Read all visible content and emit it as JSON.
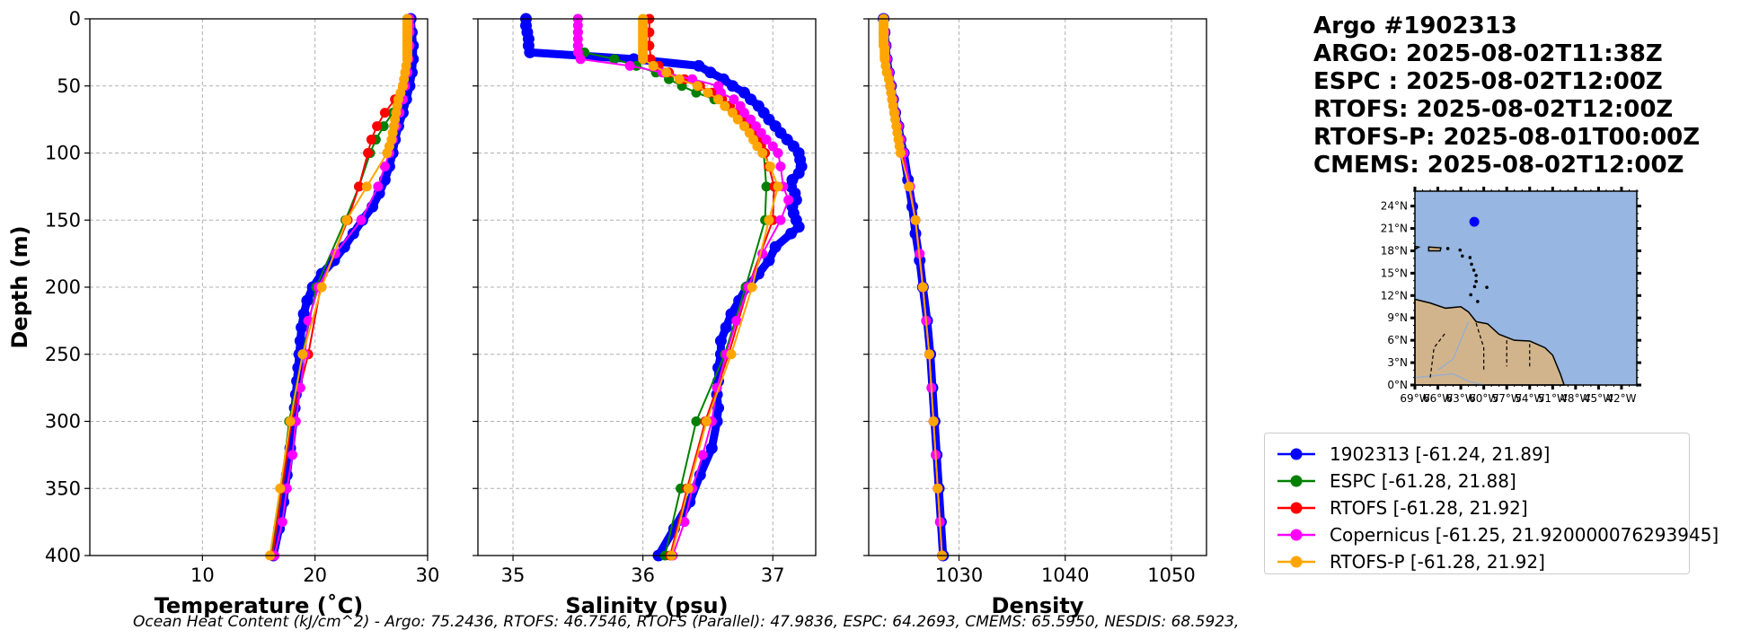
{
  "info": {
    "title": "Argo #1902313",
    "lines": [
      "ARGO: 2025-08-02T11:38Z",
      "ESPC : 2025-08-02T12:00Z",
      "RTOFS: 2025-08-02T12:00Z",
      "RTOFS-P: 2025-08-01T00:00Z",
      "CMEMS: 2025-08-02T12:00Z"
    ]
  },
  "caption": "Ocean Heat Content (kJ/cm^2) - Argo: 75.2436,  RTOFS: 46.7546,  RTOFS (Parallel): 47.9836,  ESPC: 64.2693,  CMEMS: 65.5950,  NESDIS: 68.5923,",
  "colors": {
    "argo": "#0000ff",
    "espc": "#008000",
    "rtofs": "#ff0000",
    "copernicus": "#ff00ff",
    "rtofsp": "#ffa500",
    "ocean": "#97b6e1",
    "land": "#d2b48c",
    "grid": "#b0b0b0"
  },
  "legend": [
    {
      "label": "1902313 [-61.24, 21.89]",
      "color": "#0000ff"
    },
    {
      "label": "ESPC [-61.28, 21.88]",
      "color": "#008000"
    },
    {
      "label": "RTOFS [-61.28, 21.92]",
      "color": "#ff0000"
    },
    {
      "label": "Copernicus [-61.25, 21.920000076293945]",
      "color": "#ff00ff"
    },
    {
      "label": "RTOFS-P [-61.28, 21.92]",
      "color": "#ffa500"
    }
  ],
  "map": {
    "lat_labels": [
      "24°N",
      "21°N",
      "18°N",
      "15°N",
      "12°N",
      "9°N",
      "6°N",
      "3°N",
      "0°N"
    ],
    "lon_labels": [
      "69°W",
      "66°W",
      "63°W",
      "60°W",
      "57°W",
      "54°W",
      "51°W",
      "48°W",
      "45°W",
      "42°W"
    ],
    "float_position": {
      "lon": -61.24,
      "lat": 21.89
    }
  },
  "chart_data": [
    {
      "type": "line",
      "xlabel": "Temperature (˚C)",
      "ylabel": "Depth (m)",
      "xlim": [
        0,
        30
      ],
      "ylim": [
        400,
        0
      ],
      "xticks": [
        10,
        20,
        30
      ],
      "yticks": [
        0,
        50,
        100,
        150,
        200,
        250,
        300,
        350,
        400
      ],
      "grid": true,
      "series": [
        {
          "name": "1902313",
          "depth": [
            0,
            10,
            20,
            30,
            40,
            50,
            60,
            70,
            80,
            90,
            100,
            110,
            120,
            130,
            140,
            150,
            160,
            170,
            180,
            190,
            200,
            210,
            220,
            230,
            240,
            250,
            260,
            270,
            280,
            290,
            300,
            320,
            340,
            360,
            380,
            400
          ],
          "values": [
            28.5,
            28.6,
            28.7,
            28.7,
            28.6,
            28.4,
            28.1,
            27.8,
            27.4,
            27.1,
            26.9,
            26.6,
            26.2,
            25.7,
            25.1,
            24.2,
            23.4,
            22.6,
            21.7,
            20.6,
            19.8,
            19.3,
            19.0,
            18.8,
            18.7,
            18.6,
            18.5,
            18.4,
            18.3,
            18.2,
            18.1,
            17.8,
            17.5,
            17.2,
            16.8,
            16.3
          ]
        },
        {
          "name": "ESPC",
          "depth": [
            0,
            10,
            20,
            30,
            40,
            50,
            60,
            70,
            80,
            90,
            100,
            125,
            150,
            200,
            250,
            300,
            350,
            400
          ],
          "values": [
            28.2,
            28.2,
            28.2,
            28.2,
            28.1,
            27.9,
            27.5,
            26.9,
            26.1,
            25.4,
            24.9,
            23.9,
            22.7,
            20.1,
            18.9,
            17.7,
            17.0,
            16.1
          ]
        },
        {
          "name": "RTOFS",
          "depth": [
            0,
            10,
            20,
            30,
            40,
            50,
            60,
            70,
            80,
            90,
            100,
            125,
            150,
            200,
            250,
            300,
            350,
            400
          ],
          "values": [
            28.3,
            28.3,
            28.3,
            28.3,
            28.2,
            27.8,
            27.1,
            26.2,
            25.5,
            25.0,
            24.7,
            23.9,
            22.9,
            20.5,
            19.4,
            17.9,
            17.1,
            16.2
          ]
        },
        {
          "name": "Copernicus",
          "depth": [
            0,
            5,
            10,
            20,
            30,
            40,
            50,
            60,
            70,
            80,
            90,
            100,
            110,
            125,
            150,
            175,
            200,
            225,
            250,
            275,
            300,
            325,
            350,
            375,
            400
          ],
          "values": [
            28.4,
            28.4,
            28.4,
            28.4,
            28.3,
            28.2,
            28.0,
            27.8,
            27.5,
            27.2,
            26.9,
            26.6,
            26.2,
            25.6,
            24.1,
            21.8,
            20.3,
            19.4,
            19.1,
            18.7,
            18.3,
            18.0,
            17.5,
            17.1,
            16.4
          ]
        },
        {
          "name": "RTOFS-P",
          "depth": [
            0,
            2,
            4,
            6,
            8,
            10,
            12,
            14,
            16,
            18,
            20,
            22,
            24,
            26,
            28,
            30,
            35,
            40,
            45,
            50,
            55,
            60,
            65,
            70,
            75,
            80,
            85,
            90,
            95,
            100,
            125,
            150,
            200,
            250,
            300,
            350,
            400
          ],
          "values": [
            28.2,
            28.2,
            28.2,
            28.2,
            28.2,
            28.2,
            28.2,
            28.2,
            28.2,
            28.2,
            28.2,
            28.2,
            28.2,
            28.2,
            28.2,
            28.2,
            28.1,
            28.0,
            27.9,
            27.8,
            27.6,
            27.4,
            27.3,
            27.2,
            27.1,
            27.0,
            26.9,
            26.8,
            26.6,
            26.4,
            24.6,
            22.8,
            20.6,
            18.9,
            17.8,
            16.9,
            16.0
          ]
        }
      ]
    },
    {
      "type": "line",
      "xlabel": "Salinity (psu)",
      "xlim": [
        34.73,
        37.33
      ],
      "ylim": [
        400,
        0
      ],
      "xticks": [
        35,
        36,
        37
      ],
      "yticks": [
        0,
        50,
        100,
        150,
        200,
        250,
        300,
        350,
        400
      ],
      "grid": true,
      "series": [
        {
          "name": "1902313",
          "depth": [
            0,
            5,
            10,
            15,
            20,
            25,
            30,
            35,
            40,
            45,
            50,
            55,
            60,
            65,
            70,
            75,
            80,
            85,
            90,
            95,
            100,
            105,
            110,
            115,
            120,
            125,
            130,
            135,
            140,
            145,
            150,
            155,
            160,
            170,
            180,
            190,
            200,
            210,
            220,
            230,
            240,
            250,
            260,
            270,
            280,
            290,
            300,
            320,
            340,
            360,
            380,
            400
          ],
          "values": [
            35.1,
            35.1,
            35.11,
            35.12,
            35.12,
            35.13,
            35.93,
            36.43,
            36.52,
            36.62,
            36.69,
            36.78,
            36.83,
            36.89,
            36.93,
            36.97,
            37.02,
            37.06,
            37.11,
            37.16,
            37.2,
            37.21,
            37.22,
            37.2,
            37.15,
            37.14,
            37.17,
            37.18,
            37.15,
            37.16,
            37.18,
            37.2,
            37.14,
            37.02,
            36.97,
            36.89,
            36.8,
            36.74,
            36.68,
            36.64,
            36.6,
            36.6,
            36.58,
            36.58,
            36.57,
            36.58,
            36.57,
            36.53,
            36.44,
            36.36,
            36.24,
            36.12
          ]
        },
        {
          "name": "ESPC",
          "depth": [
            0,
            10,
            20,
            25,
            30,
            35,
            40,
            45,
            50,
            55,
            60,
            65,
            70,
            75,
            80,
            90,
            100,
            125,
            150,
            200,
            250,
            300,
            350,
            400
          ],
          "values": [
            35.5,
            35.5,
            35.5,
            35.55,
            35.78,
            35.95,
            36.1,
            36.2,
            36.3,
            36.41,
            36.55,
            36.66,
            36.74,
            36.81,
            36.85,
            36.91,
            36.93,
            36.95,
            36.94,
            36.79,
            36.63,
            36.41,
            36.29,
            36.17
          ]
        },
        {
          "name": "RTOFS",
          "depth": [
            0,
            10,
            20,
            30,
            35,
            40,
            45,
            50,
            55,
            60,
            65,
            70,
            75,
            80,
            85,
            90,
            95,
            100,
            110,
            125,
            150,
            200,
            250,
            300,
            350,
            400
          ],
          "values": [
            36.05,
            36.05,
            36.05,
            36.06,
            36.12,
            36.2,
            36.32,
            36.44,
            36.53,
            36.61,
            36.67,
            36.72,
            36.77,
            36.81,
            36.85,
            36.88,
            36.91,
            36.94,
            36.97,
            37.01,
            37.0,
            36.81,
            36.66,
            36.48,
            36.34,
            36.21
          ]
        },
        {
          "name": "Copernicus",
          "depth": [
            0,
            5,
            10,
            15,
            20,
            25,
            30,
            35,
            40,
            45,
            50,
            55,
            60,
            65,
            70,
            75,
            80,
            85,
            90,
            95,
            100,
            110,
            125,
            135,
            150,
            175,
            200,
            225,
            250,
            275,
            300,
            325,
            350,
            375,
            400
          ],
          "values": [
            35.5,
            35.5,
            35.5,
            35.5,
            35.5,
            35.5,
            35.52,
            35.9,
            36.15,
            36.38,
            36.58,
            36.6,
            36.7,
            36.75,
            36.78,
            36.83,
            36.87,
            36.91,
            36.95,
            37.0,
            37.04,
            37.06,
            37.08,
            37.12,
            37.06,
            36.92,
            36.81,
            36.72,
            36.64,
            36.57,
            36.53,
            36.46,
            36.38,
            36.32,
            36.23
          ]
        },
        {
          "name": "RTOFS-P",
          "depth": [
            0,
            2,
            4,
            6,
            8,
            10,
            12,
            14,
            16,
            18,
            20,
            22,
            24,
            26,
            28,
            30,
            35,
            40,
            45,
            50,
            55,
            60,
            65,
            70,
            75,
            80,
            85,
            90,
            95,
            100,
            110,
            125,
            150,
            200,
            250,
            300,
            350,
            400
          ],
          "values": [
            36.0,
            36.0,
            36.0,
            36.0,
            36.0,
            36.0,
            36.0,
            36.0,
            36.0,
            36.0,
            36.0,
            36.0,
            36.0,
            36.0,
            36.0,
            36.0,
            36.08,
            36.18,
            36.28,
            36.42,
            36.5,
            36.58,
            36.63,
            36.69,
            36.73,
            36.78,
            36.82,
            36.85,
            36.88,
            36.92,
            36.98,
            37.04,
            36.97,
            36.84,
            36.68,
            36.49,
            36.35,
            36.22
          ]
        }
      ]
    },
    {
      "type": "line",
      "xlabel": "Density",
      "xlim": [
        1021.5,
        1053.3
      ],
      "ylim": [
        400,
        0
      ],
      "xticks": [
        1030,
        1040,
        1050
      ],
      "yticks": [
        0,
        50,
        100,
        150,
        200,
        250,
        300,
        350,
        400
      ],
      "grid": true,
      "series": [
        {
          "name": "1902313",
          "depth": [
            0,
            10,
            20,
            30,
            40,
            50,
            60,
            70,
            80,
            90,
            100,
            120,
            140,
            160,
            180,
            200,
            225,
            250,
            275,
            300,
            325,
            350,
            375,
            400
          ],
          "values": [
            1022.9,
            1023.0,
            1023.1,
            1023.2,
            1023.4,
            1023.6,
            1023.8,
            1024.0,
            1024.3,
            1024.5,
            1024.8,
            1025.2,
            1025.6,
            1025.9,
            1026.3,
            1026.6,
            1027.0,
            1027.3,
            1027.5,
            1027.7,
            1027.9,
            1028.1,
            1028.3,
            1028.5
          ]
        },
        {
          "name": "ESPC",
          "depth": [
            0,
            10,
            20,
            30,
            40,
            50,
            60,
            70,
            80,
            90,
            100,
            125,
            150,
            200,
            250,
            300,
            350,
            400
          ],
          "values": [
            1022.9,
            1023.0,
            1023.1,
            1023.2,
            1023.4,
            1023.6,
            1023.8,
            1024.0,
            1024.2,
            1024.5,
            1024.7,
            1025.3,
            1025.9,
            1026.6,
            1027.2,
            1027.6,
            1028.0,
            1028.4
          ]
        },
        {
          "name": "RTOFS",
          "depth": [
            0,
            10,
            20,
            30,
            40,
            50,
            60,
            70,
            80,
            90,
            100,
            125,
            150,
            200,
            250,
            300,
            350,
            400
          ],
          "values": [
            1022.9,
            1023.0,
            1023.1,
            1023.2,
            1023.4,
            1023.6,
            1023.8,
            1024.0,
            1024.2,
            1024.5,
            1024.7,
            1025.3,
            1025.9,
            1026.6,
            1027.2,
            1027.6,
            1028.0,
            1028.4
          ]
        },
        {
          "name": "Copernicus",
          "depth": [
            0,
            10,
            20,
            30,
            40,
            50,
            60,
            70,
            80,
            90,
            100,
            125,
            150,
            175,
            200,
            225,
            250,
            275,
            300,
            325,
            350,
            375,
            400
          ],
          "values": [
            1022.9,
            1023.0,
            1023.1,
            1023.2,
            1023.4,
            1023.6,
            1023.8,
            1024.0,
            1024.3,
            1024.5,
            1024.8,
            1025.4,
            1025.9,
            1026.3,
            1026.6,
            1026.9,
            1027.2,
            1027.4,
            1027.6,
            1027.8,
            1028.0,
            1028.2,
            1028.4
          ]
        },
        {
          "name": "RTOFS-P",
          "depth": [
            0,
            2,
            4,
            6,
            8,
            10,
            12,
            14,
            16,
            18,
            20,
            22,
            24,
            26,
            28,
            30,
            35,
            40,
            45,
            50,
            55,
            60,
            65,
            70,
            75,
            80,
            85,
            90,
            95,
            100,
            125,
            150,
            200,
            250,
            300,
            350,
            400
          ],
          "values": [
            1022.9,
            1022.9,
            1022.9,
            1022.9,
            1022.9,
            1022.9,
            1022.9,
            1022.9,
            1022.9,
            1022.9,
            1022.9,
            1023.0,
            1023.0,
            1023.0,
            1023.0,
            1023.0,
            1023.1,
            1023.2,
            1023.4,
            1023.5,
            1023.6,
            1023.7,
            1023.8,
            1023.9,
            1024.0,
            1024.1,
            1024.2,
            1024.3,
            1024.4,
            1024.5,
            1025.3,
            1025.9,
            1026.6,
            1027.2,
            1027.6,
            1028.0,
            1028.4
          ]
        }
      ]
    }
  ]
}
